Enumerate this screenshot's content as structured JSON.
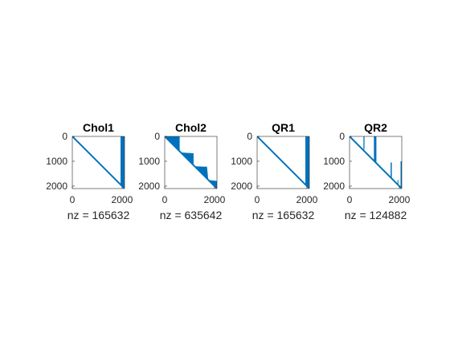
{
  "chart_data": [
    {
      "type": "spy",
      "title": "Chol1",
      "xlabel": "nz = 165632",
      "nz": 165632,
      "n": 2100,
      "xlim": [
        0,
        2100
      ],
      "ylim": [
        0,
        2100
      ],
      "xticks": [
        0,
        2000
      ],
      "yticks": [
        0,
        1000,
        2000
      ],
      "pattern": [
        {
          "kind": "diag"
        },
        {
          "kind": "poly",
          "pts": [
            [
              1940,
              0
            ],
            [
              2100,
              0
            ],
            [
              2100,
              2100
            ],
            [
              1940,
              1940
            ]
          ]
        }
      ]
    },
    {
      "type": "spy",
      "title": "Chol2",
      "xlabel": "nz = 635642",
      "nz": 635642,
      "n": 2100,
      "xlim": [
        0,
        2100
      ],
      "ylim": [
        0,
        2100
      ],
      "xticks": [
        0,
        2000
      ],
      "yticks": [
        0,
        1000,
        2000
      ],
      "pattern": [
        {
          "kind": "diag"
        },
        {
          "kind": "poly",
          "pts": [
            [
              0,
              0
            ],
            [
              600,
              0
            ],
            [
              600,
              600
            ],
            [
              700,
              650
            ],
            [
              1160,
              680
            ],
            [
              1160,
              1200
            ],
            [
              1700,
              1220
            ],
            [
              1750,
              1750
            ],
            [
              2150,
              1800
            ],
            [
              2150,
              2100
            ],
            [
              2100,
              2100
            ]
          ]
        }
      ]
    },
    {
      "type": "spy",
      "title": "QR1",
      "xlabel": "nz = 165632",
      "nz": 165632,
      "n": 2100,
      "xlim": [
        0,
        2100
      ],
      "ylim": [
        0,
        2100
      ],
      "xticks": [
        0,
        2000
      ],
      "yticks": [
        0,
        1000,
        2000
      ],
      "pattern": [
        {
          "kind": "diag"
        },
        {
          "kind": "poly",
          "pts": [
            [
              1940,
              0
            ],
            [
              2100,
              0
            ],
            [
              2100,
              2100
            ],
            [
              1940,
              1940
            ]
          ]
        }
      ]
    },
    {
      "type": "spy",
      "title": "QR2",
      "xlabel": "nz = 124882",
      "nz": 124882,
      "n": 2100,
      "xlim": [
        0,
        2100
      ],
      "ylim": [
        0,
        2100
      ],
      "xticks": [
        0,
        2000
      ],
      "yticks": [
        0,
        1000,
        2000
      ],
      "pattern": [
        {
          "kind": "diag"
        },
        {
          "kind": "poly",
          "pts": [
            [
              560,
              0
            ],
            [
              600,
              0
            ],
            [
              600,
              500
            ],
            [
              560,
              560
            ]
          ]
        },
        {
          "kind": "poly",
          "pts": [
            [
              980,
              0
            ],
            [
              1080,
              0
            ],
            [
              1080,
              1080
            ],
            [
              980,
              980
            ]
          ]
        },
        {
          "kind": "poly",
          "pts": [
            [
              1650,
              1050
            ],
            [
              1700,
              1050
            ],
            [
              1700,
              1700
            ],
            [
              1650,
              1650
            ]
          ]
        },
        {
          "kind": "poly",
          "pts": [
            [
              2050,
              1000
            ],
            [
              2100,
              1000
            ],
            [
              2100,
              2100
            ],
            [
              2050,
              2050
            ]
          ]
        },
        {
          "kind": "poly",
          "pts": [
            [
              1930,
              1750
            ],
            [
              1960,
              1750
            ],
            [
              1960,
              1960
            ],
            [
              1930,
              1930
            ]
          ]
        }
      ]
    }
  ],
  "colors": {
    "marker": "#0072BD",
    "axis": "#262626",
    "title": "#000000"
  }
}
